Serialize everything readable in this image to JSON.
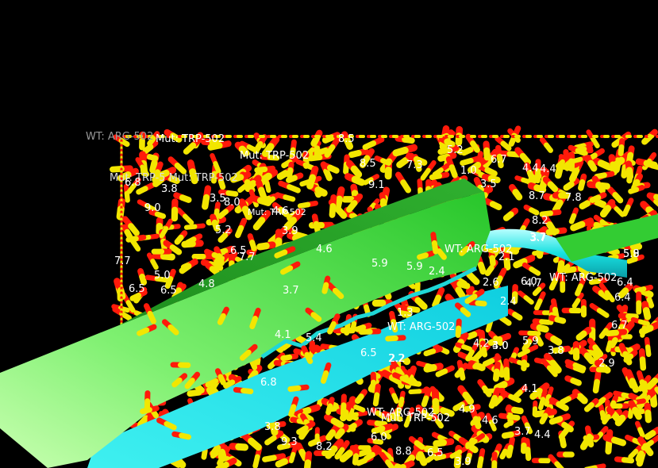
{
  "scene": {
    "background": "#000000",
    "colors": {
      "bond_a": "#ff1a0a",
      "bond_b": "#f2e600",
      "ribbon_green": "#3ad13a",
      "ribbon_lightgreen": "#a9f58a",
      "ribbon_cyan": "#19e6e6"
    },
    "residue_labels": [
      {
        "text": "WT: ARG-502",
        "tone": "dim"
      },
      {
        "text": "Mut: TRP-502",
        "tone": "bright"
      },
      {
        "text": "Mut: TRP-502",
        "tone": "bright"
      },
      {
        "text": "Mut: TRP-5 Mut: TRP-502",
        "tone": "mid"
      },
      {
        "text": "Mut: TRP-502",
        "tone": "bright"
      },
      {
        "text": "WT: ARG-502",
        "tone": "bright"
      },
      {
        "text": "WT: ARG-502",
        "tone": "bright"
      },
      {
        "text": "WT: ARG-502",
        "tone": "bright"
      },
      {
        "text": "WT: ARG-502",
        "tone": "bright"
      },
      {
        "text": "Mut: TRP-502",
        "tone": "bright"
      }
    ],
    "distance_labels": [
      "6.8",
      "3.8",
      "5.2",
      "4.6",
      "4.8",
      "6.5",
      "7.7",
      "4.6",
      "5.9",
      "5.9",
      "6.5",
      "3.7",
      "3.7",
      "5.9",
      "4.0",
      "6.5",
      "5.2",
      "7.3",
      "8.5",
      "9.1",
      "8.5",
      "9.0",
      "6.7",
      "4.4",
      "8.7",
      "7.8",
      "8.2",
      "3.7",
      "5.8",
      "6.4",
      "6.4",
      "6.7",
      "2.9",
      "5.9",
      "4.2",
      "3.8",
      "4.1",
      "4.4",
      "3.7",
      "4.6",
      "6.0",
      "6.8",
      "6.5",
      "8.8",
      "3.8",
      "3.9",
      "9.3",
      "8.2",
      "2.4",
      "5.4",
      "4.1",
      "1.3",
      "2.2",
      "2.6",
      "6.0",
      "4.4",
      "3.5",
      "5.0",
      "7.7",
      "6.5",
      "3.5",
      "4.7",
      "2.4",
      "1.0",
      "2.1",
      "8.0",
      "3.9",
      "4.9",
      "3.0",
      "2.2"
    ]
  }
}
